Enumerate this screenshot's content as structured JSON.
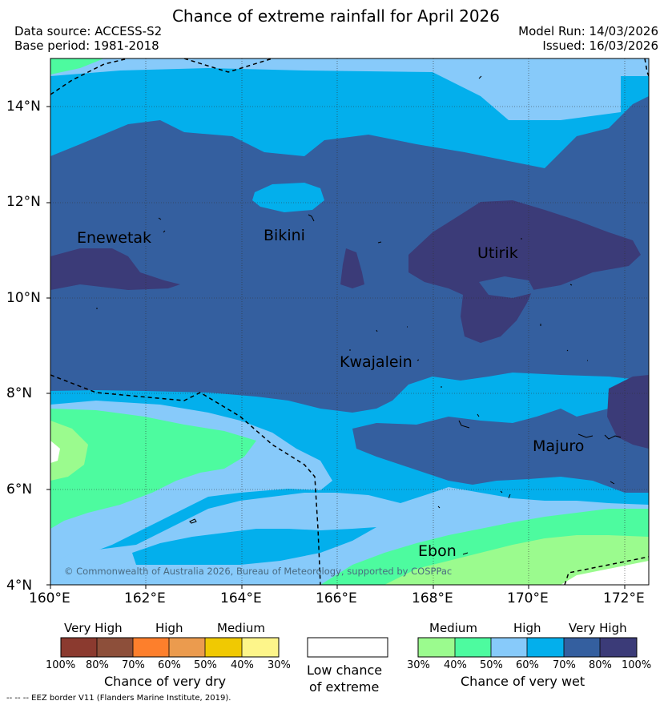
{
  "header": {
    "title": "Chance of extreme rainfall for April 2026",
    "data_source": "Data source: ACCESS-S2",
    "base_period": "Base period: 1981-2018",
    "model_run": "Model Run: 14/03/2026",
    "issued": "Issued: 16/03/2026"
  },
  "map": {
    "lat_labels": [
      "4°N",
      "6°N",
      "8°N",
      "10°N",
      "12°N",
      "14°N"
    ],
    "lon_labels": [
      "160°E",
      "162°E",
      "164°E",
      "166°E",
      "168°E",
      "170°E",
      "172°E"
    ],
    "places": [
      "Enewetak",
      "Bikini",
      "Utirik",
      "Kwajalein",
      "Majuro",
      "Ebon"
    ],
    "copyright": "© Commonwealth of Australia 2026, Bureau of Meteorology, supported by COSPPac",
    "colors": {
      "wet_30_40": "#9bfb8e",
      "wet_40_50": "#4dfb9f",
      "wet_50_60": "#87cafa",
      "wet_60_70": "#03afec",
      "wet_70_80": "#345f9f",
      "wet_80_100": "#3b3b78"
    }
  },
  "legend": {
    "dry": {
      "headings": [
        "Very High",
        "High",
        "Medium"
      ],
      "ticks": [
        "100%",
        "80%",
        "70%",
        "60%",
        "50%",
        "40%",
        "30%"
      ],
      "caption": "Chance of very dry",
      "colors": [
        "#8b3a2f",
        "#8d4f3a",
        "#fd7f2c",
        "#eb9b4e",
        "#f0c902",
        "#fdf58a"
      ]
    },
    "low": {
      "caption_line1": "Low chance",
      "caption_line2": "of extreme"
    },
    "wet": {
      "headings": [
        "Medium",
        "High",
        "Very High"
      ],
      "ticks": [
        "30%",
        "40%",
        "50%",
        "60%",
        "70%",
        "80%",
        "100%"
      ],
      "caption": "Chance of very wet",
      "colors": [
        "#9bfb8e",
        "#4dfb9f",
        "#87cafa",
        "#03afec",
        "#345f9f",
        "#3b3b78"
      ]
    }
  },
  "footer": {
    "eez_note": "-- -- -- EEZ border V11 (Flanders Marine Institute, 2019)."
  }
}
